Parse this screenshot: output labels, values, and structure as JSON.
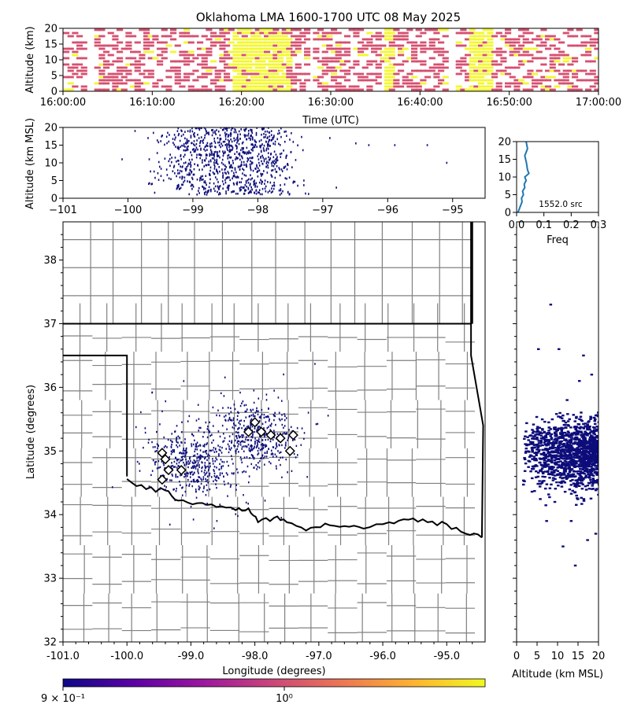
{
  "title": "Oklahoma LMA 1600-1700 UTC 08 May 2025",
  "chart_data": [
    {
      "id": "time_height",
      "type": "heatmap",
      "xlabel": "Time (UTC)",
      "ylabel": "Altitude (km)",
      "xlim_minutes": [
        0,
        60
      ],
      "xticks": [
        "16:00:00",
        "16:10:00",
        "16:20:00",
        "16:30:00",
        "16:40:00",
        "16:50:00",
        "17:00:00"
      ],
      "ylim": [
        0,
        20
      ],
      "yticks": [
        "0",
        "5",
        "10",
        "15",
        "20"
      ],
      "colors": {
        "low": "#d64f6f",
        "high": "#f3f72e"
      },
      "high_activity_minutes": [
        [
          19,
          24
        ],
        [
          24,
          25.5
        ],
        [
          36,
          37
        ],
        [
          46,
          47.5
        ],
        [
          45.5,
          48
        ]
      ]
    },
    {
      "id": "lon_alt",
      "type": "scatter",
      "xlabel": "",
      "ylabel": "Altitude (km MSL)",
      "xlim": [
        -101,
        -94.5
      ],
      "xticks": [
        "−101",
        "−100",
        "−99",
        "−98",
        "−97",
        "−96",
        "−95"
      ],
      "ylim": [
        0,
        20
      ],
      "yticks": [
        "0",
        "5",
        "10",
        "15",
        "20"
      ],
      "point_color": "#0c0c7a",
      "core_lon_range": [
        -99.5,
        -97.3
      ],
      "outliers": [
        [
          -99.9,
          19.0
        ],
        [
          -100.1,
          11.0
        ],
        [
          -99.7,
          17.0
        ],
        [
          -97.3,
          5.0
        ],
        [
          -96.9,
          17.0
        ],
        [
          -96.5,
          15.5
        ],
        [
          -96.3,
          15.0
        ],
        [
          -95.9,
          15.0
        ],
        [
          -95.4,
          15.0
        ],
        [
          -95.1,
          10.0
        ],
        [
          -96.8,
          3.0
        ]
      ]
    },
    {
      "id": "alt_hist",
      "type": "line",
      "xlabel": "Freq",
      "ylabel": "",
      "xlim": [
        0,
        0.3
      ],
      "xticks": [
        "0.0",
        "0.1",
        "0.2",
        "0.3"
      ],
      "ylim": [
        0,
        20
      ],
      "yticks": [
        "0",
        "5",
        "10",
        "15",
        "20"
      ],
      "annotation": "1552.0 src",
      "line_color": "#1f77b4",
      "x": [
        0.005,
        0.01,
        0.015,
        0.02,
        0.018,
        0.025,
        0.022,
        0.03,
        0.028,
        0.035,
        0.03,
        0.045,
        0.04,
        0.036,
        0.03,
        0.04,
        0.035
      ],
      "y": [
        0,
        1,
        2,
        3,
        4,
        5,
        6,
        7,
        8,
        9,
        10,
        11,
        12,
        14,
        16,
        18,
        20
      ]
    },
    {
      "id": "plan_view",
      "type": "scatter",
      "xlabel": "Longitude (degrees)",
      "ylabel": "Latitude (degrees)",
      "xlim": [
        -101,
        -94.4
      ],
      "xticks": [
        "-101.0",
        "-100.0",
        "-99.0",
        "-98.0",
        "-97.0",
        "-96.0",
        "-95.0"
      ],
      "ylim": [
        32,
        38.6
      ],
      "yticks": [
        "32",
        "33",
        "34",
        "35",
        "36",
        "37",
        "38"
      ],
      "point_color": "#0c0c7a",
      "stations": [
        [
          -98.0,
          35.45
        ],
        [
          -97.9,
          35.3
        ],
        [
          -97.75,
          35.25
        ],
        [
          -97.6,
          35.2
        ],
        [
          -97.45,
          35.0
        ],
        [
          -97.4,
          35.25
        ],
        [
          -98.1,
          35.3
        ],
        [
          -99.45,
          34.97
        ],
        [
          -99.4,
          34.87
        ],
        [
          -99.35,
          34.7
        ],
        [
          -99.45,
          34.55
        ],
        [
          -99.15,
          34.7
        ]
      ]
    },
    {
      "id": "alt_lat",
      "type": "scatter",
      "xlabel": "Altitude (km MSL)",
      "ylabel": "",
      "xlim": [
        0,
        20
      ],
      "xticks": [
        "0",
        "5",
        "10",
        "15",
        "20"
      ],
      "ylim": [
        32,
        38.6
      ],
      "point_color": "#0c0c7a"
    }
  ],
  "colorbar": {
    "tick_labels": [
      "9 × 10⁻¹",
      "10⁰"
    ],
    "stops": [
      "#0d0887",
      "#5c01a6",
      "#9c179e",
      "#cc4778",
      "#ed7953",
      "#fdb42f",
      "#f0f921"
    ]
  }
}
